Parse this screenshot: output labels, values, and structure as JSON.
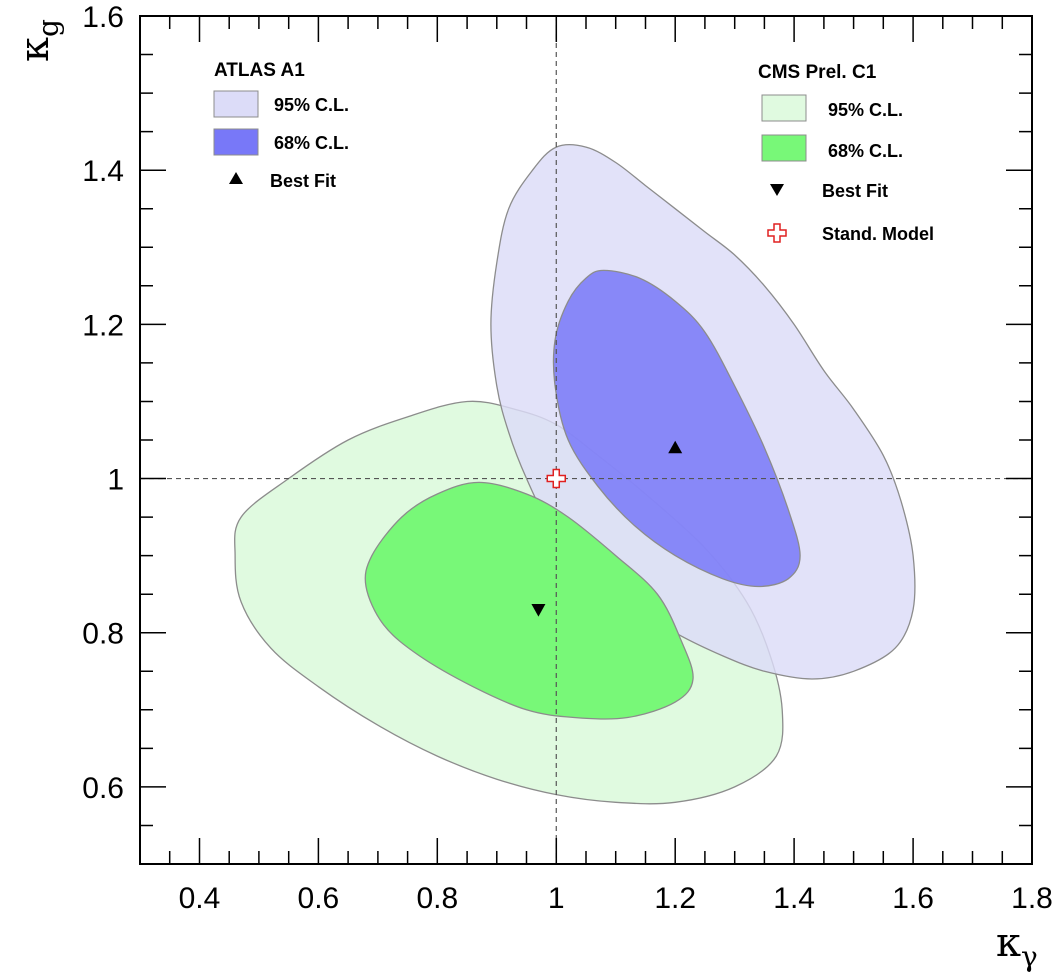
{
  "chart_data": {
    "type": "contour",
    "xlabel": {
      "main": "κ",
      "sub": "γ"
    },
    "ylabel": {
      "main": "κ",
      "sub": "g"
    },
    "xlim": [
      0.3,
      1.8
    ],
    "ylim": [
      0.5,
      1.6
    ],
    "xticks": [
      0.4,
      0.6,
      0.8,
      1,
      1.2,
      1.4,
      1.6,
      1.8
    ],
    "yticks": [
      0.6,
      0.8,
      1,
      1.2,
      1.4,
      1.6
    ],
    "xtick_labels": [
      "0.4",
      "0.6",
      "0.8",
      "1",
      "1.2",
      "1.4",
      "1.6",
      "1.8"
    ],
    "ytick_labels": [
      "0.6",
      "0.8",
      "1",
      "1.2",
      "1.4",
      "1.6"
    ],
    "reference_lines": {
      "x": 1.0,
      "y": 1.0
    },
    "standard_model": {
      "x": 1.0,
      "y": 1.0,
      "label": "Stand. Model",
      "color": "#e02020"
    },
    "groups": [
      {
        "title": "ATLAS A1",
        "best_fit": {
          "x": 1.2,
          "y": 1.04,
          "marker": "triangle-up",
          "label": "Best Fit"
        },
        "contours": [
          {
            "label": "95% C.L.",
            "fill": "#dcdcf8",
            "stroke": "#8c8c8c",
            "points": [
              [
                1.0,
                1.43
              ],
              [
                1.05,
                1.43
              ],
              [
                1.1,
                1.41
              ],
              [
                1.15,
                1.38
              ],
              [
                1.2,
                1.35
              ],
              [
                1.25,
                1.32
              ],
              [
                1.3,
                1.29
              ],
              [
                1.35,
                1.25
              ],
              [
                1.4,
                1.2
              ],
              [
                1.45,
                1.14
              ],
              [
                1.5,
                1.09
              ],
              [
                1.55,
                1.03
              ],
              [
                1.58,
                0.97
              ],
              [
                1.6,
                0.9
              ],
              [
                1.6,
                0.83
              ],
              [
                1.57,
                0.78
              ],
              [
                1.5,
                0.75
              ],
              [
                1.43,
                0.74
              ],
              [
                1.35,
                0.75
              ],
              [
                1.28,
                0.77
              ],
              [
                1.2,
                0.8
              ],
              [
                1.12,
                0.84
              ],
              [
                1.05,
                0.89
              ],
              [
                0.99,
                0.94
              ],
              [
                0.95,
                1.0
              ],
              [
                0.92,
                1.06
              ],
              [
                0.9,
                1.12
              ],
              [
                0.89,
                1.2
              ],
              [
                0.9,
                1.28
              ],
              [
                0.92,
                1.35
              ],
              [
                0.96,
                1.4
              ]
            ]
          },
          {
            "label": "68% C.L.",
            "fill": "#7878f8",
            "stroke": "#8c8c8c",
            "points": [
              [
                1.08,
                1.27
              ],
              [
                1.14,
                1.26
              ],
              [
                1.2,
                1.23
              ],
              [
                1.25,
                1.19
              ],
              [
                1.3,
                1.12
              ],
              [
                1.35,
                1.04
              ],
              [
                1.39,
                0.96
              ],
              [
                1.41,
                0.9
              ],
              [
                1.39,
                0.87
              ],
              [
                1.34,
                0.86
              ],
              [
                1.28,
                0.87
              ],
              [
                1.2,
                0.9
              ],
              [
                1.13,
                0.94
              ],
              [
                1.07,
                0.99
              ],
              [
                1.02,
                1.05
              ],
              [
                0.998,
                1.12
              ],
              [
                0.998,
                1.18
              ],
              [
                1.02,
                1.23
              ],
              [
                1.05,
                1.26
              ]
            ]
          }
        ]
      },
      {
        "title": "CMS Prel. C1",
        "best_fit": {
          "x": 0.97,
          "y": 0.83,
          "marker": "triangle-down",
          "label": "Best Fit"
        },
        "contours": [
          {
            "label": "95% C.L.",
            "fill": "#e0fae0",
            "stroke": "#8c8c8c",
            "points": [
              [
                0.47,
                0.95
              ],
              [
                0.55,
                1.0
              ],
              [
                0.65,
                1.05
              ],
              [
                0.75,
                1.08
              ],
              [
                0.85,
                1.1
              ],
              [
                0.93,
                1.09
              ],
              [
                1.0,
                1.07
              ],
              [
                1.07,
                1.03
              ],
              [
                1.15,
                0.98
              ],
              [
                1.25,
                0.91
              ],
              [
                1.32,
                0.84
              ],
              [
                1.36,
                0.77
              ],
              [
                1.38,
                0.7
              ],
              [
                1.37,
                0.64
              ],
              [
                1.3,
                0.6
              ],
              [
                1.2,
                0.58
              ],
              [
                1.1,
                0.58
              ],
              [
                1.0,
                0.59
              ],
              [
                0.9,
                0.61
              ],
              [
                0.8,
                0.64
              ],
              [
                0.7,
                0.68
              ],
              [
                0.6,
                0.73
              ],
              [
                0.52,
                0.78
              ],
              [
                0.47,
                0.84
              ],
              [
                0.46,
                0.9
              ]
            ]
          },
          {
            "label": "68% C.L.",
            "fill": "#78f878",
            "stroke": "#8c8c8c",
            "points": [
              [
                0.69,
                0.9
              ],
              [
                0.74,
                0.95
              ],
              [
                0.8,
                0.98
              ],
              [
                0.87,
                0.995
              ],
              [
                0.95,
                0.98
              ],
              [
                1.02,
                0.95
              ],
              [
                1.1,
                0.9
              ],
              [
                1.17,
                0.85
              ],
              [
                1.21,
                0.79
              ],
              [
                1.23,
                0.74
              ],
              [
                1.2,
                0.71
              ],
              [
                1.12,
                0.69
              ],
              [
                1.03,
                0.69
              ],
              [
                0.95,
                0.7
              ],
              [
                0.86,
                0.73
              ],
              [
                0.77,
                0.77
              ],
              [
                0.71,
                0.81
              ],
              [
                0.68,
                0.86
              ]
            ]
          }
        ]
      }
    ]
  }
}
